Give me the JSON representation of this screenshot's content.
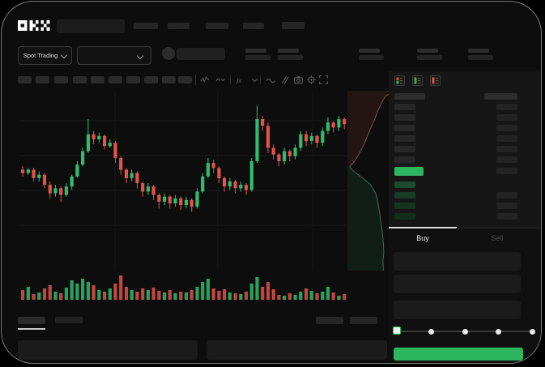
{
  "brand": {
    "name": "OKX"
  },
  "colors": {
    "accent_green": "#2cb45f",
    "candle_up": "#2ebd70",
    "candle_down": "#e25449",
    "window_bg": "#0d0d0d",
    "tab_underline": "#dcdcdc"
  },
  "market_selector": {
    "label": "Spot Trading"
  },
  "toolbar": {
    "icons": [
      "indicator-wave-icon",
      "chart-type-chevron-icon",
      "fx-indicator-icon",
      "interval-chevron-icon",
      "line-style-icon",
      "draw-icon",
      "camera-icon",
      "settings-gear-icon",
      "fullscreen-icon"
    ]
  },
  "order_book": {
    "view_icons": [
      "book-combined-icon",
      "book-buys-only-icon",
      "book-sells-only-icon"
    ],
    "ask_rows": 6,
    "bid_rows": 4,
    "bid_rows_with_amount": [
      2,
      3,
      4
    ],
    "bid_tints": [
      "#1d4a2f",
      "#183d27",
      "#143420",
      "#122e1d"
    ],
    "last_price_color": "#2cb45f"
  },
  "trade_panel": {
    "tabs": [
      {
        "label": "Buy",
        "active": true
      },
      {
        "label": "Sell",
        "active": false
      }
    ],
    "slider": {
      "stops": 5,
      "active_index": 0
    },
    "submit_button": {
      "color": "#2cb45f"
    }
  },
  "chart_data": {
    "type": "candlestick",
    "title": "",
    "legend": [],
    "grid": {
      "h_lines": [
        35,
        78,
        121,
        164
      ],
      "v_lines": [
        118,
        245,
        362
      ]
    },
    "price_scale": [
      0,
      100
    ],
    "colors": {
      "up": "#2ebd70",
      "down": "#e25449"
    },
    "candles": [
      [
        57,
        55,
        59,
        53
      ],
      [
        55,
        57,
        58,
        54
      ],
      [
        57,
        52,
        58,
        50
      ],
      [
        52,
        54,
        56,
        50
      ],
      [
        54,
        48,
        55,
        46
      ],
      [
        48,
        43,
        50,
        40
      ],
      [
        43,
        46,
        48,
        41
      ],
      [
        46,
        42,
        47,
        38
      ],
      [
        42,
        47,
        49,
        41
      ],
      [
        47,
        53,
        54,
        45
      ],
      [
        53,
        60,
        62,
        52
      ],
      [
        60,
        68,
        70,
        59
      ],
      [
        68,
        78,
        87,
        67
      ],
      [
        78,
        75,
        80,
        72
      ],
      [
        75,
        77,
        79,
        73
      ],
      [
        77,
        71,
        78,
        69
      ],
      [
        71,
        73,
        75,
        70
      ],
      [
        73,
        64,
        74,
        61
      ],
      [
        64,
        57,
        65,
        54
      ],
      [
        57,
        52,
        58,
        49
      ],
      [
        52,
        55,
        57,
        50
      ],
      [
        55,
        49,
        56,
        46
      ],
      [
        49,
        44,
        50,
        41
      ],
      [
        44,
        47,
        49,
        42
      ],
      [
        47,
        42,
        48,
        39
      ],
      [
        42,
        38,
        43,
        34
      ],
      [
        38,
        41,
        43,
        36
      ],
      [
        41,
        37,
        42,
        34
      ],
      [
        37,
        40,
        42,
        35
      ],
      [
        40,
        36,
        41,
        33
      ],
      [
        36,
        39,
        41,
        34
      ],
      [
        39,
        35,
        40,
        32
      ],
      [
        35,
        44,
        46,
        34
      ],
      [
        44,
        53,
        55,
        43
      ],
      [
        53,
        61,
        64,
        52
      ],
      [
        61,
        58,
        63,
        55
      ],
      [
        58,
        52,
        59,
        49
      ],
      [
        52,
        47,
        53,
        44
      ],
      [
        47,
        50,
        52,
        45
      ],
      [
        50,
        46,
        51,
        43
      ],
      [
        46,
        48,
        50,
        44
      ],
      [
        48,
        45,
        49,
        42
      ],
      [
        45,
        62,
        64,
        44
      ],
      [
        62,
        87,
        95,
        61
      ],
      [
        87,
        83,
        89,
        80
      ],
      [
        83,
        70,
        85,
        67
      ],
      [
        70,
        66,
        72,
        63
      ],
      [
        66,
        62,
        67,
        59
      ],
      [
        62,
        68,
        70,
        60
      ],
      [
        68,
        65,
        69,
        62
      ],
      [
        65,
        70,
        72,
        63
      ],
      [
        70,
        78,
        80,
        68
      ],
      [
        78,
        74,
        80,
        71
      ],
      [
        74,
        77,
        79,
        72
      ],
      [
        77,
        73,
        78,
        70
      ],
      [
        73,
        80,
        82,
        71
      ],
      [
        80,
        85,
        88,
        78
      ],
      [
        85,
        82,
        86,
        79
      ],
      [
        82,
        87,
        89,
        80
      ],
      [
        87,
        84,
        88,
        81
      ]
    ],
    "volumes": [
      12,
      16,
      7,
      9,
      14,
      18,
      10,
      8,
      15,
      24,
      20,
      26,
      22,
      18,
      12,
      10,
      14,
      20,
      30,
      16,
      12,
      10,
      14,
      12,
      15,
      11,
      9,
      12,
      8,
      10,
      9,
      12,
      16,
      22,
      26,
      14,
      11,
      13,
      9,
      8,
      7,
      10,
      20,
      28,
      16,
      22,
      13,
      6,
      5,
      8,
      6,
      10,
      14,
      11,
      8,
      10,
      16,
      9,
      5,
      7
    ],
    "depth": {
      "asks": [
        [
          1.0,
          0.02
        ],
        [
          0.92,
          0.03
        ],
        [
          0.84,
          0.06
        ],
        [
          0.78,
          0.09
        ],
        [
          0.72,
          0.12
        ],
        [
          0.66,
          0.16
        ],
        [
          0.6,
          0.19
        ],
        [
          0.54,
          0.22
        ],
        [
          0.47,
          0.26
        ],
        [
          0.4,
          0.3
        ],
        [
          0.33,
          0.33
        ],
        [
          0.26,
          0.36
        ],
        [
          0.18,
          0.39
        ],
        [
          0.1,
          0.41
        ],
        [
          0.05,
          0.425
        ]
      ],
      "bids": [
        [
          0.05,
          0.425
        ],
        [
          0.12,
          0.44
        ],
        [
          0.22,
          0.46
        ],
        [
          0.34,
          0.48
        ],
        [
          0.45,
          0.5
        ],
        [
          0.55,
          0.52
        ],
        [
          0.62,
          0.545
        ],
        [
          0.68,
          0.57
        ],
        [
          0.72,
          0.6
        ],
        [
          0.75,
          0.64
        ],
        [
          0.78,
          0.68
        ],
        [
          0.8,
          0.72
        ],
        [
          0.83,
          0.76
        ],
        [
          0.85,
          0.8
        ],
        [
          0.87,
          0.85
        ],
        [
          0.88,
          0.9
        ],
        [
          0.86,
          0.95
        ],
        [
          0.87,
          1.0
        ]
      ]
    }
  }
}
